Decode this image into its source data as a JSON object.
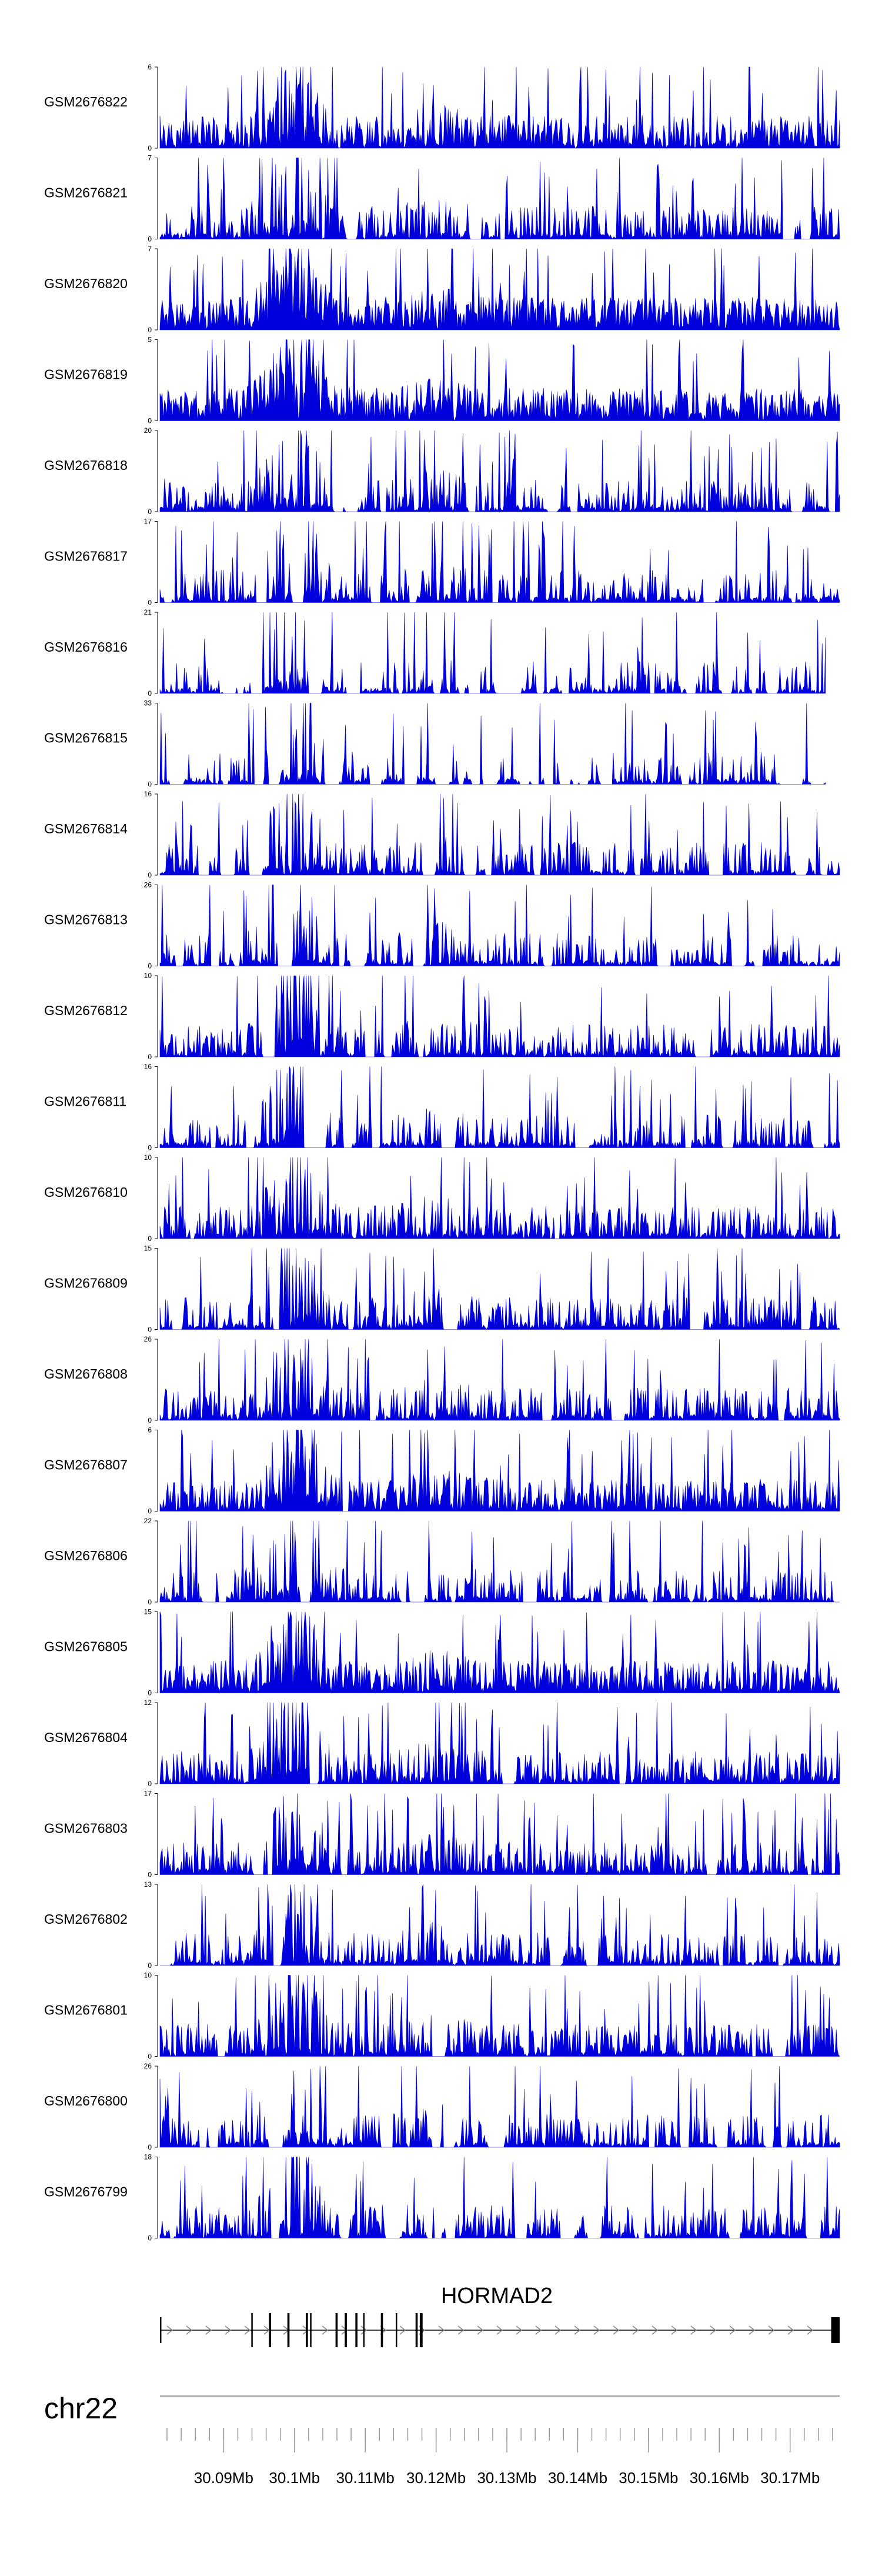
{
  "colors": {
    "signal": "#0000dd",
    "axis": "#000000",
    "ruler": "#999999",
    "gene": "#000000"
  },
  "chart_data": {
    "type": "area",
    "title": "",
    "chromosome": "chr22",
    "xlim_mb": [
      30.081,
      30.177
    ],
    "x_axis_ticks": [
      {
        "value": 30.09,
        "label": "30.09Mb"
      },
      {
        "value": 30.1,
        "label": "30.1Mb"
      },
      {
        "value": 30.11,
        "label": "30.11Mb"
      },
      {
        "value": 30.12,
        "label": "30.12Mb"
      },
      {
        "value": 30.13,
        "label": "30.13Mb"
      },
      {
        "value": 30.14,
        "label": "30.14Mb"
      },
      {
        "value": 30.15,
        "label": "30.15Mb"
      },
      {
        "value": 30.16,
        "label": "30.16Mb"
      },
      {
        "value": 30.17,
        "label": "30.17Mb"
      }
    ],
    "tracks": [
      {
        "name": "GSM2676822",
        "ymax": 6,
        "ymax_label": "6",
        "ymin_label": "0",
        "density": 0.8,
        "gaps": 0.02,
        "end_mb": 30.177
      },
      {
        "name": "GSM2676821",
        "ymax": 7,
        "ymax_label": "7",
        "ymin_label": "0",
        "density": 0.55,
        "gaps": 0.08,
        "end_mb": 30.177
      },
      {
        "name": "GSM2676820",
        "ymax": 7,
        "ymax_label": "7",
        "ymin_label": "0",
        "density": 0.9,
        "gaps": 0.0,
        "end_mb": 30.177
      },
      {
        "name": "GSM2676819",
        "ymax": 5,
        "ymax_label": "5",
        "ymin_label": "0",
        "density": 0.9,
        "gaps": 0.0,
        "end_mb": 30.177
      },
      {
        "name": "GSM2676818",
        "ymax": 20,
        "ymax_label": "20",
        "ymin_label": "0",
        "density": 0.45,
        "gaps": 0.12,
        "end_mb": 30.177
      },
      {
        "name": "GSM2676817",
        "ymax": 17,
        "ymax_label": "17",
        "ymin_label": "0",
        "density": 0.45,
        "gaps": 0.15,
        "end_mb": 30.177
      },
      {
        "name": "GSM2676816",
        "ymax": 21,
        "ymax_label": "21",
        "ymin_label": "0",
        "density": 0.35,
        "gaps": 0.2,
        "end_mb": 30.175
      },
      {
        "name": "GSM2676815",
        "ymax": 33,
        "ymax_label": "33",
        "ymin_label": "0",
        "density": 0.3,
        "gaps": 0.25,
        "end_mb": 30.175
      },
      {
        "name": "GSM2676814",
        "ymax": 16,
        "ymax_label": "16",
        "ymin_label": "0",
        "density": 0.5,
        "gaps": 0.12,
        "end_mb": 30.177
      },
      {
        "name": "GSM2676813",
        "ymax": 26,
        "ymax_label": "26",
        "ymin_label": "0",
        "density": 0.4,
        "gaps": 0.18,
        "end_mb": 30.177
      },
      {
        "name": "GSM2676812",
        "ymax": 10,
        "ymax_label": "10",
        "ymin_label": "0",
        "density": 0.55,
        "gaps": 0.1,
        "end_mb": 30.177
      },
      {
        "name": "GSM2676811",
        "ymax": 16,
        "ymax_label": "16",
        "ymin_label": "0",
        "density": 0.45,
        "gaps": 0.12,
        "end_mb": 30.177
      },
      {
        "name": "GSM2676810",
        "ymax": 10,
        "ymax_label": "10",
        "ymin_label": "0",
        "density": 0.6,
        "gaps": 0.06,
        "end_mb": 30.177
      },
      {
        "name": "GSM2676809",
        "ymax": 15,
        "ymax_label": "15",
        "ymin_label": "0",
        "density": 0.55,
        "gaps": 0.08,
        "end_mb": 30.177
      },
      {
        "name": "GSM2676808",
        "ymax": 26,
        "ymax_label": "26",
        "ymin_label": "0",
        "density": 0.5,
        "gaps": 0.1,
        "end_mb": 30.177
      },
      {
        "name": "GSM2676807",
        "ymax": 6,
        "ymax_label": "6",
        "ymin_label": "0",
        "density": 0.75,
        "gaps": 0.03,
        "end_mb": 30.177
      },
      {
        "name": "GSM2676806",
        "ymax": 22,
        "ymax_label": "22",
        "ymin_label": "0",
        "density": 0.45,
        "gaps": 0.12,
        "end_mb": 30.177
      },
      {
        "name": "GSM2676805",
        "ymax": 15,
        "ymax_label": "15",
        "ymin_label": "0",
        "density": 0.8,
        "gaps": 0.02,
        "end_mb": 30.177
      },
      {
        "name": "GSM2676804",
        "ymax": 12,
        "ymax_label": "12",
        "ymin_label": "0",
        "density": 0.65,
        "gaps": 0.05,
        "end_mb": 30.177
      },
      {
        "name": "GSM2676803",
        "ymax": 17,
        "ymax_label": "17",
        "ymin_label": "0",
        "density": 0.6,
        "gaps": 0.06,
        "end_mb": 30.177
      },
      {
        "name": "GSM2676802",
        "ymax": 13,
        "ymax_label": "13",
        "ymin_label": "0",
        "density": 0.55,
        "gaps": 0.08,
        "end_mb": 30.177
      },
      {
        "name": "GSM2676801",
        "ymax": 10,
        "ymax_label": "10",
        "ymin_label": "0",
        "density": 0.7,
        "gaps": 0.04,
        "end_mb": 30.177
      },
      {
        "name": "GSM2676800",
        "ymax": 26,
        "ymax_label": "26",
        "ymin_label": "0",
        "density": 0.5,
        "gaps": 0.1,
        "end_mb": 30.177
      },
      {
        "name": "GSM2676799",
        "ymax": 18,
        "ymax_label": "18",
        "ymin_label": "0",
        "density": 0.55,
        "gaps": 0.08,
        "end_mb": 30.177
      }
    ],
    "hotspots_mb": [
      {
        "center": 30.1,
        "width": 0.0035,
        "gain": 1.0
      },
      {
        "center": 30.1015,
        "width": 0.002,
        "gain": 0.6
      },
      {
        "center": 30.098,
        "width": 0.003,
        "gain": 0.4
      },
      {
        "center": 30.12,
        "width": 0.004,
        "gain": 0.25
      }
    ],
    "gene": {
      "name": "HORMAD2",
      "strand": "+",
      "start_mb": 30.081,
      "end_mb": 30.177,
      "exons_mb": [
        {
          "start": 30.081,
          "end": 30.0812
        },
        {
          "start": 30.0939,
          "end": 30.0941
        },
        {
          "start": 30.0964,
          "end": 30.0967
        },
        {
          "start": 30.099,
          "end": 30.0993
        },
        {
          "start": 30.1016,
          "end": 30.1019
        },
        {
          "start": 30.1022,
          "end": 30.1024
        },
        {
          "start": 30.1058,
          "end": 30.1061
        },
        {
          "start": 30.1071,
          "end": 30.1074
        },
        {
          "start": 30.1086,
          "end": 30.1089
        },
        {
          "start": 30.1097,
          "end": 30.1099
        },
        {
          "start": 30.1122,
          "end": 30.1125
        },
        {
          "start": 30.1143,
          "end": 30.1145
        },
        {
          "start": 30.1171,
          "end": 30.1174
        },
        {
          "start": 30.1177,
          "end": 30.1181
        },
        {
          "start": 30.1758,
          "end": 30.177
        }
      ]
    }
  }
}
